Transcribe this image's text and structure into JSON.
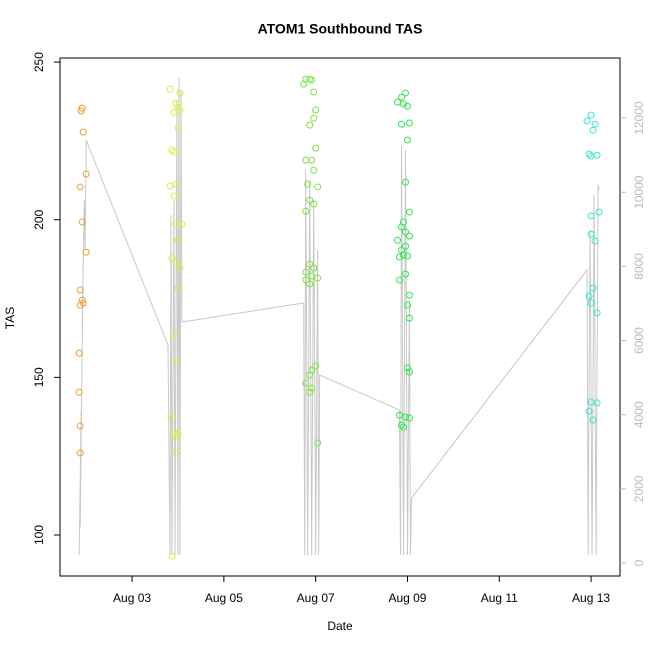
{
  "chart_data": {
    "type": "scatter",
    "title": "ATOM1 Southbound TAS",
    "xlabel": "Date",
    "ylabel": "TAS",
    "xlim": [
      1.43,
      13.63
    ],
    "xticks": [
      {
        "value": 3,
        "label": "Aug 03"
      },
      {
        "value": 5,
        "label": "Aug 05"
      },
      {
        "value": 7,
        "label": "Aug 07"
      },
      {
        "value": 9,
        "label": "Aug 09"
      },
      {
        "value": 11,
        "label": "Aug 11"
      },
      {
        "value": 13,
        "label": "Aug 13"
      }
    ],
    "ylim": [
      87,
      251.3
    ],
    "yticks": [
      100,
      150,
      200,
      250
    ],
    "y2lim": [
      -350,
      13620
    ],
    "y2ticks": [
      0,
      2000,
      4000,
      6000,
      8000,
      10000,
      12000
    ],
    "y2color": "#bbbbbb",
    "series": [
      {
        "color": "#f29a2e",
        "x": [
          1.913,
          1.891,
          1.935,
          1.87,
          2.0,
          1.913,
          2.0,
          1.87,
          1.913,
          1.87,
          1.935,
          1.848,
          1.848,
          1.87,
          1.87
        ],
        "values": [
          235.4,
          234.5,
          227.8,
          210.4,
          214.5,
          199.3,
          189.7,
          177.7,
          174.5,
          172.9,
          173.6,
          157.7,
          145.3,
          134.6,
          126.0
        ]
      },
      {
        "color": "#d8f23a",
        "x": [
          3.826,
          4.043,
          3.957,
          4.0,
          3.913,
          4.043,
          3.87,
          3.913,
          4.0,
          3.826,
          3.957,
          3.913,
          4.087,
          3.957,
          4.0,
          3.87,
          3.957,
          4.043,
          4.0,
          3.913,
          3.957,
          3.87,
          3.913,
          3.957,
          4.0,
          3.957,
          3.87
        ],
        "values": [
          241.4,
          240.2,
          237.0,
          235.7,
          234.1,
          234.8,
          222.1,
          221.5,
          229.1,
          210.7,
          211.3,
          207.5,
          198.6,
          198.6,
          193.5,
          187.8,
          186.6,
          184.7,
          178.3,
          163.4,
          154.9,
          137.1,
          132.7,
          131.1,
          132.0,
          126.0,
          93.3
        ]
      },
      {
        "color": "#7ae63a",
        "x": [
          6.783,
          6.87,
          6.739,
          6.913,
          6.957,
          7.0,
          6.957,
          6.87,
          7.0,
          6.783,
          6.913,
          6.957,
          6.826,
          7.043,
          6.87,
          6.957,
          6.783,
          6.87,
          6.957,
          6.783,
          6.913,
          7.043,
          6.783,
          6.87,
          7.0,
          6.913,
          6.87,
          6.783,
          6.913,
          6.87,
          7.043
        ],
        "values": [
          244.6,
          244.6,
          243.0,
          244.3,
          240.5,
          234.8,
          232.2,
          230.0,
          222.7,
          218.9,
          218.9,
          215.7,
          211.3,
          210.4,
          206.2,
          205.0,
          202.7,
          185.9,
          184.7,
          183.4,
          182.1,
          181.5,
          180.9,
          179.6,
          153.6,
          152.3,
          150.7,
          148.2,
          146.6,
          145.3,
          129.2
        ]
      },
      {
        "color": "#2ee84a",
        "x": [
          8.957,
          8.87,
          8.783,
          9.0,
          8.913,
          8.87,
          9.043,
          9.0,
          8.957,
          9.043,
          8.913,
          8.87,
          8.957,
          9.043,
          8.783,
          8.957,
          8.87,
          8.913,
          9.0,
          8.826,
          8.957,
          8.826,
          9.043,
          9.0,
          9.043,
          9.0,
          9.043,
          8.826,
          8.957,
          9.043,
          8.87,
          8.913
        ],
        "values": [
          240.2,
          238.9,
          237.3,
          236.0,
          236.7,
          230.3,
          230.7,
          225.3,
          211.9,
          202.4,
          199.3,
          197.7,
          196.1,
          194.8,
          193.5,
          191.6,
          190.4,
          188.8,
          188.5,
          188.2,
          182.8,
          180.9,
          176.1,
          172.9,
          168.8,
          153.0,
          151.7,
          138.0,
          137.4,
          137.1,
          134.9,
          134.2
        ]
      },
      {
        "color": "#33e8c8",
        "x": [
          13.0,
          12.913,
          13.087,
          13.043,
          12.957,
          13.0,
          13.13,
          13.0,
          13.174,
          13.0,
          13.087,
          13.043,
          12.957,
          13.0,
          13.13,
          13.0,
          13.13,
          12.957,
          13.043
        ],
        "values": [
          233.2,
          231.3,
          230.3,
          228.4,
          220.8,
          220.2,
          220.5,
          201.2,
          202.4,
          195.4,
          193.2,
          178.3,
          175.8,
          173.6,
          170.4,
          142.2,
          141.9,
          139.3,
          136.5
        ]
      },
      {
        "type": "line",
        "axis": "y2",
        "color": "#c8c8c8",
        "x": [
          1.848,
          1.891,
          1.87,
          1.935,
          1.913,
          1.957,
          1.978,
          2.0,
          3.783,
          3.826,
          3.848,
          3.87,
          3.913,
          3.935,
          3.978,
          4.0,
          4.022,
          4.043,
          4.065,
          4.087,
          6.739,
          6.761,
          6.783,
          6.826,
          6.87,
          6.913,
          6.957,
          7.0,
          7.043,
          7.065,
          7.087,
          8.826,
          8.848,
          8.87,
          8.913,
          8.957,
          9.0,
          9.043,
          9.065,
          9.087,
          12.913,
          12.935,
          12.978,
          13.022,
          13.065,
          13.109,
          13.152,
          13.174
        ],
        "values": [
          216,
          4126,
          971,
          8171,
          6284,
          9790,
          8441,
          11408,
          5879,
          216,
          9385,
          216,
          9790,
          216,
          12487,
          216,
          13080,
          216,
          12756,
          6499,
          7012,
          216,
          10599,
          216,
          10329,
          216,
          9790,
          216,
          8441,
          216,
          5070,
          4126,
          216,
          11273,
          216,
          11138,
          216,
          7093,
          216,
          1753,
          7902,
          216,
          8981,
          216,
          9925,
          216,
          10194,
          10059
        ]
      }
    ]
  }
}
